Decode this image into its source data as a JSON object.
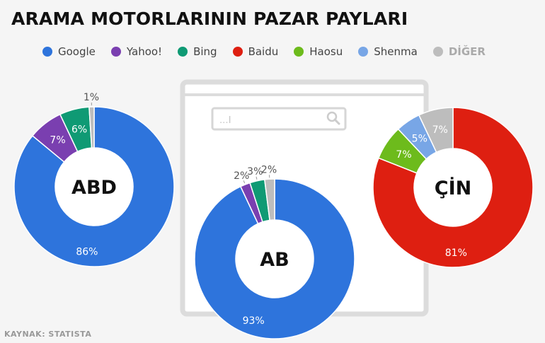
{
  "title": "ARAMA MOTORLARININ PAZAR PAYLARI",
  "source": "KAYNAK: STATISTA",
  "search_placeholder": "...I",
  "legend": [
    {
      "label": "Google",
      "color": "#2e74dc"
    },
    {
      "label": "Yahoo!",
      "color": "#7a3fb0"
    },
    {
      "label": "Bing",
      "color": "#0f9a74"
    },
    {
      "label": "Baidu",
      "color": "#de1f11"
    },
    {
      "label": "Haosu",
      "color": "#6dbb1c"
    },
    {
      "label": "Shenma",
      "color": "#78a6e6"
    },
    {
      "label": "DİĞER",
      "color": "#bdbdbd"
    }
  ],
  "chart_data": [
    {
      "type": "pie",
      "center_label": "ABD",
      "slices": [
        {
          "name": "Google",
          "value": 86,
          "label": "86%"
        },
        {
          "name": "Yahoo!",
          "value": 7,
          "label": "7%"
        },
        {
          "name": "Bing",
          "value": 6,
          "label": "6%"
        },
        {
          "name": "DİĞER",
          "value": 1,
          "label": "1%"
        }
      ]
    },
    {
      "type": "pie",
      "center_label": "AB",
      "slices": [
        {
          "name": "Google",
          "value": 93,
          "label": "93%"
        },
        {
          "name": "Yahoo!",
          "value": 2,
          "label": "2%"
        },
        {
          "name": "Bing",
          "value": 3,
          "label": "3%"
        },
        {
          "name": "DİĞER",
          "value": 2,
          "label": "2%"
        }
      ]
    },
    {
      "type": "pie",
      "center_label": "ÇİN",
      "slices": [
        {
          "name": "Baidu",
          "value": 81,
          "label": "81%"
        },
        {
          "name": "Haosu",
          "value": 7,
          "label": "7%"
        },
        {
          "name": "Shenma",
          "value": 5,
          "label": "5%"
        },
        {
          "name": "DİĞER",
          "value": 7,
          "label": "7%"
        }
      ]
    }
  ]
}
